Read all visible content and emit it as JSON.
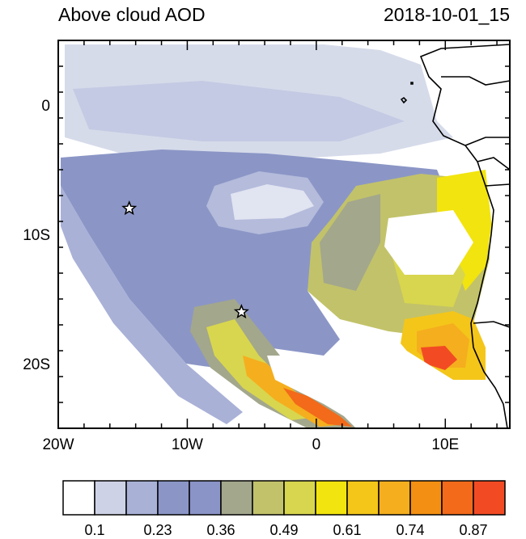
{
  "title_left": "Above cloud AOD",
  "title_right": "2018-10-01_15",
  "axes": {
    "lon_range": [
      -20,
      15
    ],
    "lat_range": [
      -25,
      5
    ],
    "x_ticks": [
      {
        "value": -20,
        "label": "20W"
      },
      {
        "value": -10,
        "label": "10W"
      },
      {
        "value": 0,
        "label": "0"
      },
      {
        "value": 10,
        "label": "10E"
      }
    ],
    "y_ticks": [
      {
        "value": 0,
        "label": "0"
      },
      {
        "value": -10,
        "label": "10S"
      },
      {
        "value": -20,
        "label": "20S"
      }
    ]
  },
  "markers": [
    {
      "name": "star",
      "lon": -14.5,
      "lat": -8
    },
    {
      "name": "star",
      "lon": -5.8,
      "lat": -16
    }
  ],
  "colorbar": {
    "colors": [
      "#ffffff",
      "#cdd2e6",
      "#a9b1d7",
      "#8b96c6",
      "#8a94c6",
      "#a3a78c",
      "#c2c26a",
      "#d8d64e",
      "#f2e40e",
      "#f4c61a",
      "#f5ae1e",
      "#f38f12",
      "#f26a1a",
      "#f24b24"
    ],
    "labels": [
      "0.1",
      "0.23",
      "0.36",
      "0.49",
      "0.61",
      "0.74",
      "0.87"
    ]
  }
}
